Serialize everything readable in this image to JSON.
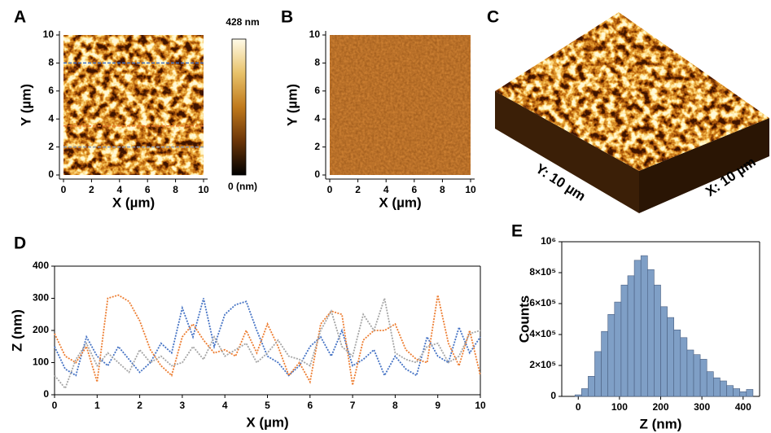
{
  "chart_data": [
    {
      "type": "image",
      "panel": "A",
      "xlabel": "X (µm)",
      "ylabel": "Y (µm)",
      "xlim": [
        0,
        10
      ],
      "ylim": [
        0,
        10
      ],
      "xticks": [
        0,
        2,
        4,
        6,
        8,
        10
      ],
      "yticks": [
        0,
        2,
        4,
        6,
        8,
        10
      ],
      "colorbar_top": "428 nm",
      "colorbar_bottom": "0 (nm)",
      "profile_lines": [
        {
          "y": 8,
          "color": "#4472c4"
        },
        {
          "y": 3.5,
          "color": "#ed7d31"
        },
        {
          "y": 2,
          "color": "#8a9bb5"
        }
      ]
    },
    {
      "type": "image",
      "panel": "B",
      "xlabel": "X (µm)",
      "ylabel": "Y (µm)",
      "xlim": [
        0,
        10
      ],
      "ylim": [
        0,
        10
      ],
      "xticks": [
        0,
        2,
        4,
        6,
        8,
        10
      ],
      "yticks": [
        0,
        2,
        4,
        6,
        8,
        10
      ]
    },
    {
      "type": "surface3d",
      "panel": "C",
      "xlabel": "X: 10 µm",
      "ylabel": "Y: 10 µm"
    },
    {
      "type": "line",
      "panel": "D",
      "xlabel": "X (µm)",
      "ylabel": "Z (nm)",
      "xlim": [
        0,
        10
      ],
      "ylim": [
        0,
        400
      ],
      "xticks": [
        0,
        1,
        2,
        3,
        4,
        5,
        6,
        7,
        8,
        9,
        10
      ],
      "yticks": [
        0,
        100,
        200,
        300,
        400
      ],
      "x": [
        0,
        0.25,
        0.5,
        0.75,
        1,
        1.25,
        1.5,
        1.75,
        2,
        2.25,
        2.5,
        2.75,
        3,
        3.25,
        3.5,
        3.75,
        4,
        4.25,
        4.5,
        4.75,
        5,
        5.25,
        5.5,
        5.75,
        6,
        6.25,
        6.5,
        6.75,
        7,
        7.25,
        7.5,
        7.75,
        8,
        8.25,
        8.5,
        8.75,
        9,
        9.25,
        9.5,
        9.75,
        10
      ],
      "series": [
        {
          "color": "#4472c4",
          "values": [
            150,
            80,
            60,
            180,
            120,
            90,
            150,
            110,
            70,
            100,
            160,
            130,
            270,
            180,
            300,
            150,
            250,
            280,
            290,
            200,
            120,
            100,
            60,
            90,
            150,
            180,
            120,
            200,
            90,
            110,
            140,
            60,
            120,
            80,
            60,
            180,
            120,
            100,
            210,
            130,
            180
          ]
        },
        {
          "color": "#ed7d31",
          "values": [
            190,
            120,
            100,
            150,
            40,
            300,
            310,
            290,
            230,
            140,
            90,
            60,
            180,
            220,
            170,
            130,
            140,
            120,
            200,
            130,
            220,
            150,
            60,
            100,
            40,
            220,
            260,
            250,
            30,
            170,
            200,
            200,
            220,
            140,
            110,
            100,
            310,
            160,
            90,
            200,
            60
          ]
        },
        {
          "color": "#a5a5a5",
          "values": [
            60,
            20,
            110,
            160,
            90,
            130,
            100,
            70,
            140,
            100,
            120,
            90,
            100,
            150,
            110,
            180,
            120,
            140,
            160,
            100,
            130,
            170,
            120,
            110,
            90,
            200,
            260,
            150,
            120,
            250,
            200,
            300,
            130,
            110,
            100,
            150,
            160,
            100,
            120,
            190,
            200
          ]
        }
      ]
    },
    {
      "type": "histogram",
      "panel": "E",
      "xlabel": "Z (nm)",
      "ylabel": "Counts",
      "color": "#7f9fc6",
      "xlim": [
        -40,
        440
      ],
      "ylim": [
        0,
        1000000
      ],
      "xticks": [
        0,
        100,
        200,
        300,
        400
      ],
      "yticks": [
        0,
        {
          "value": 200000,
          "label": "2×10⁵"
        },
        {
          "value": 400000,
          "label": "4×10⁵"
        },
        {
          "value": 600000,
          "label": "6×10⁵"
        },
        {
          "value": 800000,
          "label": "8×10⁵"
        },
        {
          "value": 1000000,
          "label": "10⁶"
        }
      ],
      "bins": [
        -8,
        8,
        24,
        40,
        56,
        72,
        88,
        104,
        120,
        136,
        152,
        168,
        184,
        200,
        216,
        232,
        248,
        264,
        280,
        296,
        312,
        328,
        344,
        360,
        376,
        392,
        408,
        424
      ],
      "values": [
        10000,
        50000,
        130000,
        290000,
        420000,
        530000,
        610000,
        720000,
        780000,
        880000,
        910000,
        820000,
        720000,
        580000,
        510000,
        430000,
        380000,
        300000,
        270000,
        240000,
        160000,
        120000,
        100000,
        70000,
        50000,
        30000,
        45000
      ]
    }
  ]
}
